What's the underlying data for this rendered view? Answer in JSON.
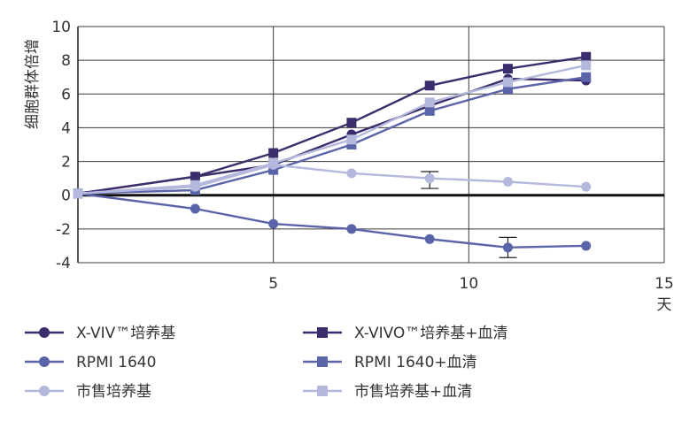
{
  "chart_data": {
    "type": "line",
    "ylabel": "细胞群体倍增",
    "xlabel": "天",
    "xlim": [
      0,
      15
    ],
    "ylim": [
      -4,
      10
    ],
    "x_ticks": [
      5,
      10,
      15
    ],
    "y_ticks": [
      10,
      8,
      6,
      4,
      2,
      0,
      -2,
      -4
    ],
    "grid": true,
    "legend_position": "bottom",
    "series": [
      {
        "name": "X-VIV™培养基",
        "marker": "circle",
        "color": "#3b2d6b",
        "x": [
          0,
          3,
          5,
          7,
          9,
          11,
          13
        ],
        "y": [
          0.1,
          1.1,
          1.8,
          3.6,
          5.3,
          6.9,
          6.8
        ]
      },
      {
        "name": "X-VIVO™培养基+血清",
        "marker": "square",
        "color": "#3b2d6b",
        "x": [
          0,
          3,
          5,
          7,
          9,
          11,
          13
        ],
        "y": [
          0.1,
          1.1,
          2.5,
          4.3,
          6.5,
          7.5,
          8.2
        ]
      },
      {
        "name": "RPMI 1640",
        "marker": "circle",
        "color": "#5a64a8",
        "x": [
          0,
          3,
          5,
          7,
          9,
          11,
          13
        ],
        "y": [
          0.1,
          -0.8,
          -1.7,
          -2.0,
          -2.6,
          -3.1,
          -3.0
        ]
      },
      {
        "name": "RPMI 1640+血清",
        "marker": "square",
        "color": "#5a64a8",
        "x": [
          0,
          3,
          5,
          7,
          9,
          11,
          13
        ],
        "y": [
          0.1,
          0.3,
          1.5,
          3.0,
          5.0,
          6.3,
          7.0
        ]
      },
      {
        "name": "市售培养基",
        "marker": "circle",
        "color": "#b3b8dc",
        "x": [
          0,
          3,
          5,
          7,
          9,
          11,
          13
        ],
        "y": [
          0.1,
          0.5,
          1.8,
          1.3,
          1.0,
          0.8,
          0.5
        ]
      },
      {
        "name": "市售培养基+血清",
        "marker": "square",
        "color": "#b3b8dc",
        "x": [
          0,
          3,
          5,
          7,
          9,
          11,
          13
        ],
        "y": [
          0.1,
          0.6,
          1.9,
          3.3,
          5.5,
          6.7,
          7.7
        ]
      }
    ],
    "error_bars": [
      {
        "x": 9,
        "y": 1.0,
        "low": 0.4,
        "high": 1.4
      },
      {
        "x": 11,
        "y": -3.1,
        "low": -3.7,
        "high": -2.5
      }
    ]
  }
}
